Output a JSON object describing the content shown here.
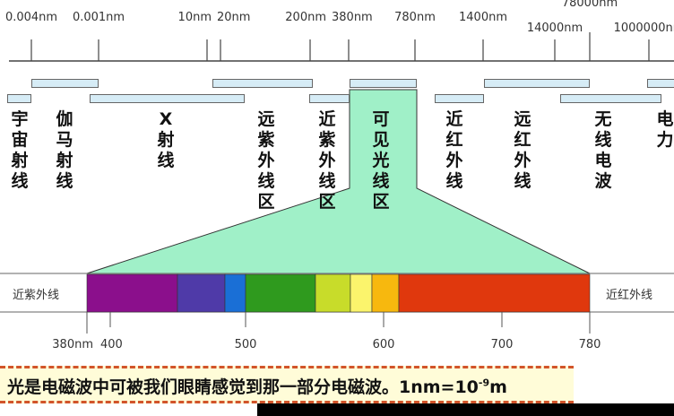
{
  "top_axis": {
    "ticks": [
      "0.004nm",
      "0.001nm",
      "10nm",
      "20nm",
      "200nm",
      "380nm",
      "780nm",
      "1400nm",
      "14000nm",
      "78000nm",
      "1000000nm"
    ]
  },
  "bands": [
    "宇宙射线",
    "伽马射线",
    "X射线",
    "远紫外线区",
    "近紫外线区",
    "可见光线区",
    "近红外线",
    "远红外线",
    "无线电波",
    "电力"
  ],
  "visible": {
    "left_label": "近紫外线",
    "right_label": "近红外线",
    "ticks": [
      "380nm",
      "400",
      "500",
      "600",
      "700",
      "780"
    ],
    "colors": [
      "#8b0f8c",
      "#4f3aa8",
      "#1a6fd6",
      "#2f9a1e",
      "#c8dc2a",
      "#fbf46c",
      "#f7b80e",
      "#e0380d"
    ],
    "highlight": "#a0f0c8"
  },
  "note": {
    "text": "光是电磁波中可被我们眼睛感觉到那一部分电磁波。1nm=10",
    "sup": "-9",
    "unit": "m"
  }
}
